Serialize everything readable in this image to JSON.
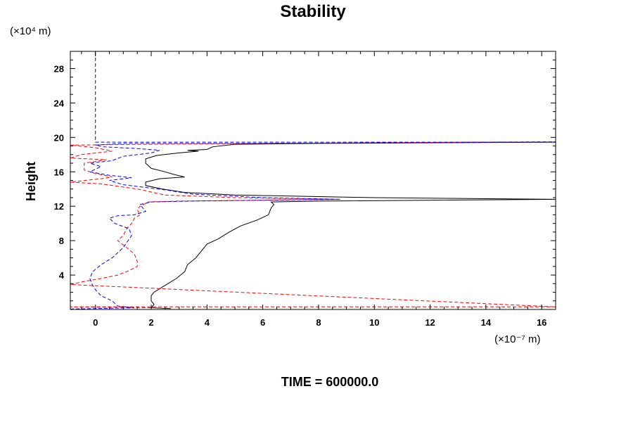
{
  "chart_data": {
    "type": "line",
    "title": "Stability",
    "xlabel": "",
    "ylabel": "Height",
    "x_unit": "(×10⁻⁷ m)",
    "y_unit": "(×10⁴ m)",
    "xlim": [
      -0.9,
      16.5
    ],
    "ylim": [
      0,
      30
    ],
    "x_ticks": [
      0,
      2,
      4,
      6,
      8,
      10,
      12,
      14,
      16
    ],
    "y_ticks": [
      4,
      8,
      12,
      16,
      20,
      24,
      28
    ],
    "grid": false,
    "legend": "none",
    "series": [
      {
        "color": "#000000",
        "dash": "solid",
        "points": [
          [
            2.7,
            0.1
          ],
          [
            2.0,
            0.2
          ],
          [
            2.1,
            0.6
          ],
          [
            2.0,
            1.0
          ],
          [
            2.0,
            1.6
          ],
          [
            2.1,
            2.0
          ],
          [
            2.5,
            2.8
          ],
          [
            2.9,
            3.6
          ],
          [
            3.2,
            4.4
          ],
          [
            3.3,
            5.2
          ],
          [
            3.6,
            6.0
          ],
          [
            3.8,
            6.8
          ],
          [
            4.0,
            7.6
          ],
          [
            4.4,
            8.2
          ],
          [
            4.8,
            9.0
          ],
          [
            5.2,
            9.7
          ],
          [
            5.8,
            10.4
          ],
          [
            6.2,
            11.0
          ],
          [
            6.3,
            11.8
          ],
          [
            6.4,
            12.2
          ],
          [
            6.3,
            12.5
          ],
          [
            8.0,
            12.6
          ],
          [
            16.5,
            12.8
          ],
          [
            10.0,
            13.0
          ],
          [
            5.0,
            13.3
          ],
          [
            3.2,
            13.6
          ],
          [
            2.4,
            14.0
          ],
          [
            1.8,
            14.4
          ],
          [
            1.8,
            14.8
          ],
          [
            2.3,
            15.2
          ],
          [
            3.2,
            15.4
          ],
          [
            2.8,
            15.7
          ],
          [
            2.5,
            16.0
          ],
          [
            2.0,
            16.4
          ],
          [
            1.8,
            17.0
          ],
          [
            1.8,
            17.5
          ],
          [
            2.2,
            17.9
          ],
          [
            3.0,
            18.2
          ],
          [
            3.7,
            18.4
          ],
          [
            3.3,
            18.5
          ],
          [
            4.0,
            18.6
          ],
          [
            4.2,
            18.9
          ],
          [
            5.0,
            19.2
          ],
          [
            8.0,
            19.3
          ],
          [
            16.5,
            19.45
          ]
        ]
      },
      {
        "color": "#ff0000",
        "dash": "dashed",
        "points": [
          [
            2.0,
            0.2
          ],
          [
            1.2,
            0.25
          ],
          [
            -0.9,
            0.3
          ],
          [
            16.5,
            0.3
          ],
          [
            -0.9,
            2.9
          ],
          [
            -0.5,
            3.2
          ],
          [
            0.2,
            3.6
          ],
          [
            0.8,
            4.0
          ],
          [
            1.2,
            4.5
          ],
          [
            1.5,
            5.0
          ],
          [
            1.5,
            5.6
          ],
          [
            1.4,
            6.4
          ],
          [
            1.2,
            7.0
          ],
          [
            1.0,
            7.5
          ],
          [
            0.8,
            8.0
          ],
          [
            1.0,
            8.6
          ],
          [
            1.1,
            9.3
          ],
          [
            1.3,
            10.0
          ],
          [
            1.4,
            10.6
          ],
          [
            1.6,
            11.0
          ],
          [
            1.5,
            11.6
          ],
          [
            1.6,
            12.0
          ],
          [
            1.9,
            12.5
          ],
          [
            3.0,
            12.6
          ],
          [
            8.7,
            12.8
          ],
          [
            5.0,
            13.0
          ],
          [
            2.5,
            13.3
          ],
          [
            1.5,
            14.0
          ],
          [
            0.2,
            14.6
          ],
          [
            -0.9,
            14.8
          ],
          [
            0.2,
            15.2
          ],
          [
            0.6,
            15.4
          ],
          [
            0.0,
            15.8
          ],
          [
            -0.4,
            16.2
          ],
          [
            -0.4,
            17.0
          ],
          [
            0.4,
            17.4
          ],
          [
            -0.9,
            17.6
          ],
          [
            -0.5,
            18.0
          ],
          [
            0.6,
            18.4
          ],
          [
            0.0,
            18.8
          ],
          [
            -0.9,
            19.1
          ],
          [
            2.0,
            19.2
          ],
          [
            6.0,
            19.3
          ],
          [
            16.5,
            19.5
          ]
        ]
      },
      {
        "color": "#0000ff",
        "dash": "dashed",
        "points": [
          [
            -0.9,
            0.05
          ],
          [
            1.4,
            0.2
          ],
          [
            0.8,
            0.4
          ],
          [
            0.6,
            1.0
          ],
          [
            0.2,
            1.6
          ],
          [
            0.0,
            2.3
          ],
          [
            -0.1,
            2.8
          ],
          [
            -0.2,
            3.6
          ],
          [
            -0.1,
            4.4
          ],
          [
            0.2,
            5.2
          ],
          [
            0.6,
            6.0
          ],
          [
            1.0,
            7.2
          ],
          [
            1.3,
            8.6
          ],
          [
            1.2,
            9.4
          ],
          [
            0.7,
            10.0
          ],
          [
            0.5,
            10.6
          ],
          [
            0.8,
            10.9
          ],
          [
            1.4,
            11.0
          ],
          [
            1.8,
            11.4
          ],
          [
            1.6,
            12.2
          ],
          [
            2.0,
            12.5
          ],
          [
            3.5,
            12.6
          ],
          [
            8.8,
            12.8
          ],
          [
            6.0,
            13.0
          ],
          [
            3.5,
            13.4
          ],
          [
            2.5,
            13.9
          ],
          [
            1.0,
            14.5
          ],
          [
            0.5,
            15.0
          ],
          [
            1.3,
            15.3
          ],
          [
            0.5,
            15.6
          ],
          [
            -0.2,
            16.0
          ],
          [
            0.2,
            16.6
          ],
          [
            -0.2,
            17.0
          ],
          [
            0.6,
            17.3
          ],
          [
            1.0,
            17.8
          ],
          [
            2.0,
            18.2
          ],
          [
            2.3,
            18.5
          ],
          [
            1.5,
            18.7
          ],
          [
            0.3,
            18.9
          ],
          [
            0.0,
            19.1
          ],
          [
            1.0,
            19.3
          ],
          [
            6.0,
            19.3
          ],
          [
            16.5,
            19.45
          ],
          [
            0.0,
            19.45
          ],
          [
            0.0,
            22.0
          ],
          [
            0.0,
            30.0
          ]
        ]
      }
    ],
    "footer": "TIME = 600000.0"
  }
}
